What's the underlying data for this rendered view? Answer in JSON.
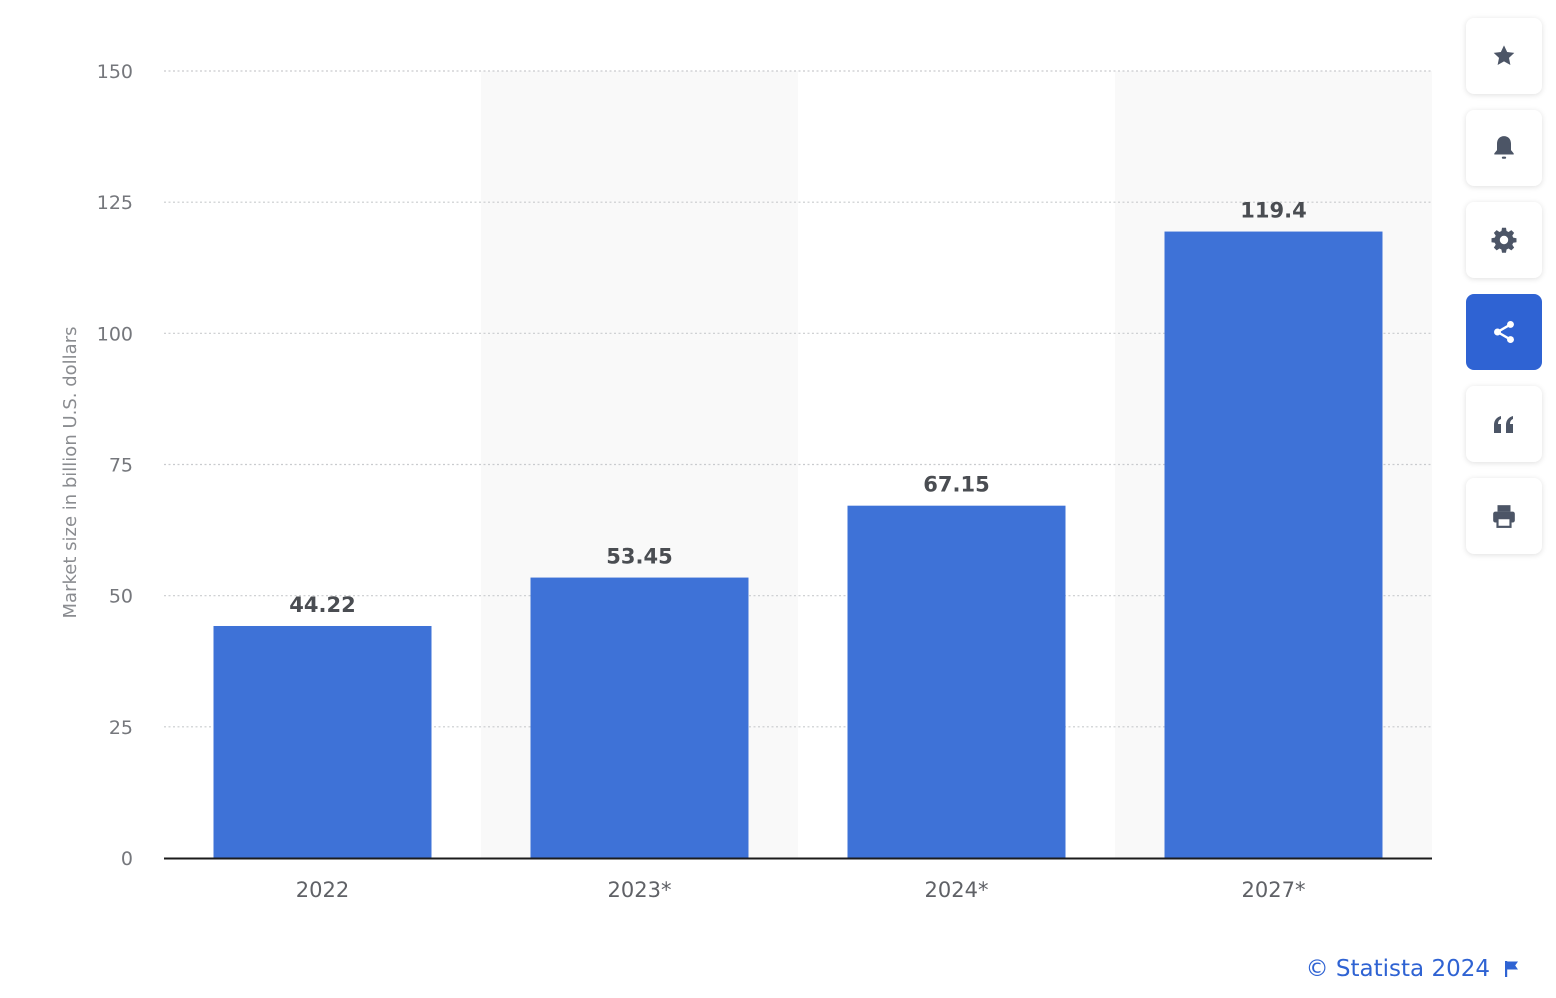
{
  "chart_data": {
    "type": "bar",
    "categories": [
      "2022",
      "2023*",
      "2024*",
      "2027*"
    ],
    "values": [
      44.22,
      53.45,
      67.15,
      119.4
    ],
    "value_labels": [
      "44.22",
      "53.45",
      "67.15",
      "119.4"
    ],
    "title": "",
    "xlabel": "",
    "ylabel": "Market size in billion U.S. dollars",
    "ylim": [
      0,
      150
    ],
    "yticks": [
      0,
      25,
      50,
      75,
      100,
      125,
      150
    ],
    "grid": true,
    "colors": {
      "bar": "#3e72d7",
      "band": "#f9f9f9",
      "grid": "#c9cbce",
      "axis": "#1b1b1b"
    }
  },
  "toolbar": {
    "items": [
      {
        "name": "favorite",
        "icon": "star-icon"
      },
      {
        "name": "notification",
        "icon": "bell-icon"
      },
      {
        "name": "settings",
        "icon": "gear-icon"
      },
      {
        "name": "share",
        "icon": "share-icon",
        "active": true
      },
      {
        "name": "cite",
        "icon": "quote-icon"
      },
      {
        "name": "print",
        "icon": "print-icon"
      }
    ],
    "icon_color": "#4c5566",
    "active_color": "#2f63d3"
  },
  "credit": {
    "text": "© Statista 2024",
    "icon": "flag-icon"
  }
}
